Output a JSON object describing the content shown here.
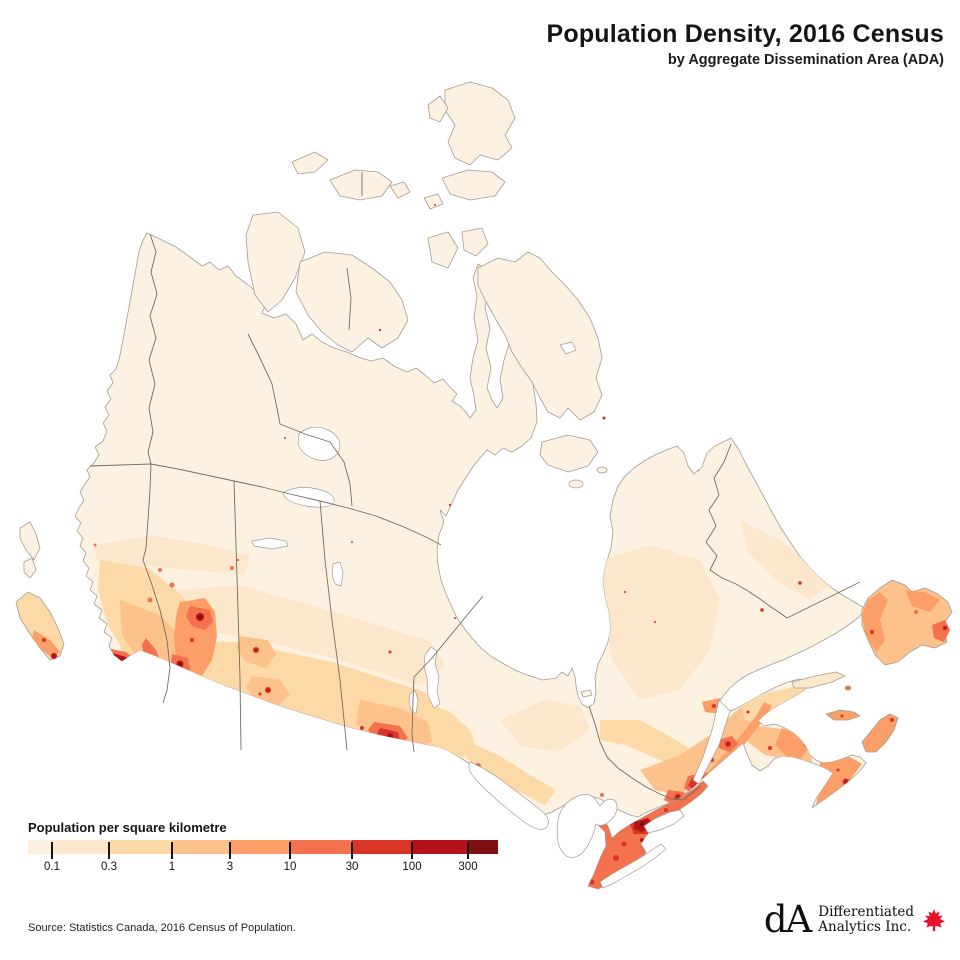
{
  "header": {
    "title": "Population Density, 2016 Census",
    "subtitle": "by Aggregate Dissemination Area (ADA)"
  },
  "legend": {
    "title": "Population per square kilometre",
    "tick_labels": [
      "0.1",
      "0.3",
      "1",
      "3",
      "10",
      "30",
      "100",
      "300"
    ],
    "colors": [
      "#fdf2e2",
      "#fbe8cc",
      "#fdd9a7",
      "#fdc28b",
      "#fc9e68",
      "#f4714e",
      "#d93425",
      "#b5121b",
      "#7f1114"
    ]
  },
  "map": {
    "region_label": "Canada population density choropleth by ADA",
    "water_color": "#ffffff",
    "coastline_color": "#a29d95",
    "province_border_color": "#756c5e"
  },
  "footer": {
    "source": "Source: Statistics Canada, 2016 Census of Population."
  },
  "logo": {
    "monogram": "dA",
    "name_line1": "Differentiated",
    "name_line2": "Analytics Inc.",
    "leaf_color": "#e8112d"
  }
}
